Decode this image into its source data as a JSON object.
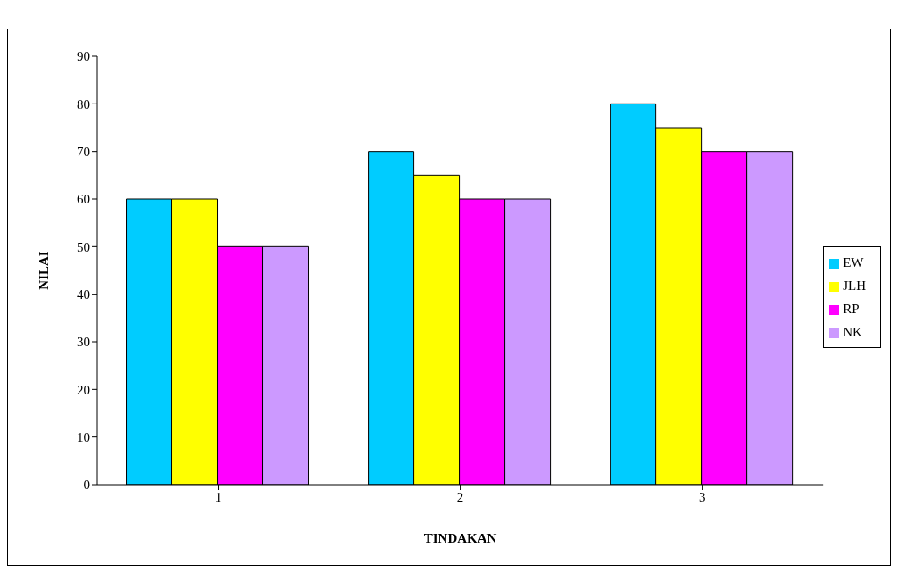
{
  "chart_data": {
    "type": "bar",
    "xlabel": "TINDAKAN",
    "ylabel": "NILAI",
    "categories": [
      "1",
      "2",
      "3"
    ],
    "series": [
      {
        "name": "EW",
        "color": "#00ccff",
        "values": [
          60,
          70,
          80
        ]
      },
      {
        "name": "JLH",
        "color": "#ffff00",
        "values": [
          60,
          65,
          75
        ]
      },
      {
        "name": "RP",
        "color": "#ff00ff",
        "values": [
          50,
          60,
          70
        ]
      },
      {
        "name": "NK",
        "color": "#cc99ff",
        "values": [
          50,
          60,
          70
        ]
      }
    ],
    "ylim": [
      0,
      90
    ],
    "yticks": [
      0,
      10,
      20,
      30,
      40,
      50,
      60,
      70,
      80,
      90
    ],
    "grid": false,
    "legend": "right"
  }
}
